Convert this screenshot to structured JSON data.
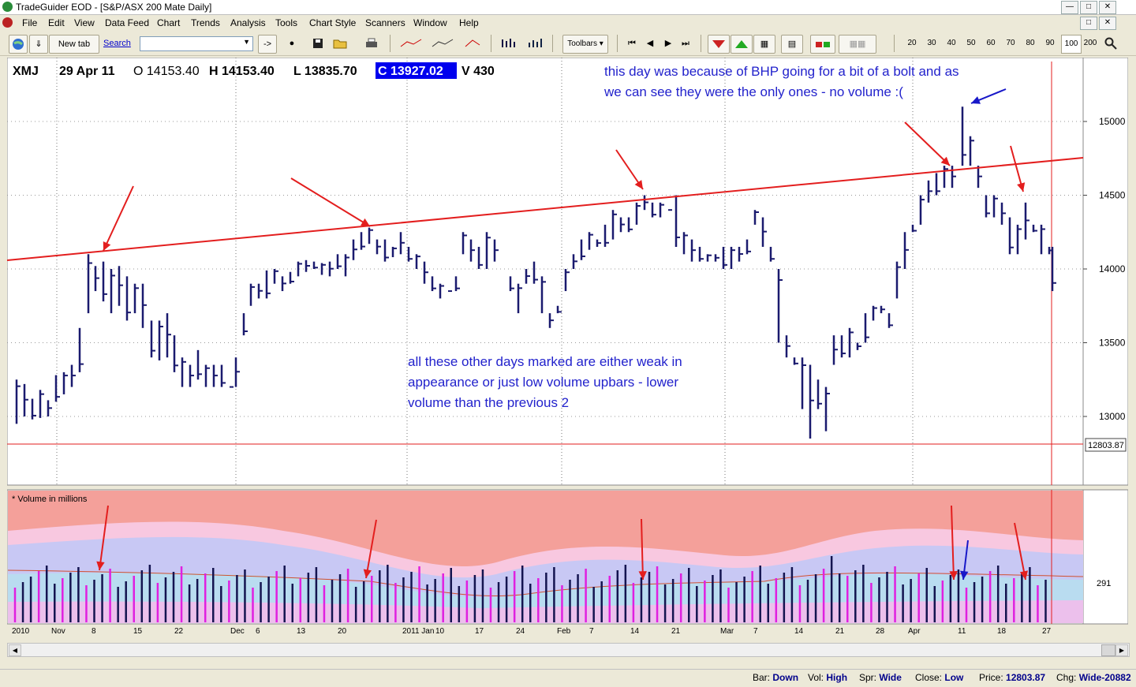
{
  "window": {
    "title": "TradeGuider EOD - [S&P/ASX 200 Mate Daily]"
  },
  "menu": [
    "File",
    "Edit",
    "View",
    "Data Feed",
    "Chart",
    "Trends",
    "Analysis",
    "Tools",
    "Chart Style",
    "Scanners",
    "Window",
    "Help"
  ],
  "toolbar": {
    "new_tab_label": "New tab",
    "search_label": "Search",
    "go_label": "->",
    "toolbars_label": "Toolbars",
    "zoom_levels": [
      "20",
      "30",
      "40",
      "50",
      "60",
      "70",
      "80",
      "90",
      "100",
      "200"
    ]
  },
  "chart_header": {
    "symbol": "XMJ",
    "date": "29 Apr 11",
    "open": "O 14153.40",
    "high": "H 14153.40",
    "low": "L 13835.70",
    "close": "C 13927.02",
    "volume": "V 430"
  },
  "annotations": {
    "bhp_note_line1": "this day was because of BHP going for a bit of a bolt and as",
    "bhp_note_line2": "we can see they were the only ones - no volume :(",
    "other_days_line1": "all these other days marked are either weak in",
    "other_days_line2": "appearance or just low volume upbars - lower",
    "other_days_line3": "volume than the previous 2"
  },
  "price_axis": {
    "ticks": [
      "15000",
      "14500",
      "14000",
      "13500",
      "13000"
    ],
    "cursor_price": "12803.87"
  },
  "volume_panel": {
    "label": "* Volume in millions",
    "axis_label": "291"
  },
  "date_axis": [
    "2010",
    "Nov",
    "8",
    "15",
    "22",
    "Dec",
    "6",
    "13",
    "20",
    "2011 Jan",
    "10",
    "17",
    "24",
    "Feb",
    "7",
    "14",
    "21",
    "Mar",
    "7",
    "14",
    "21",
    "28",
    "Apr",
    "11",
    "18",
    "27"
  ],
  "status": {
    "bar_label": "Bar:",
    "bar_value": "Down",
    "vol_label": "Vol:",
    "vol_value": "High",
    "spr_label": "Spr:",
    "spr_value": "Wide",
    "close_label": "Close:",
    "close_value": "Low",
    "price_label": "Price:",
    "price_value": "12803.87",
    "chg_label": "Chg:",
    "chg_value": "Wide-20882"
  },
  "colors": {
    "bar": "#1a1a6e",
    "trend": "#e31e1e",
    "note": "#2222cc",
    "vol_up": "#e020e0",
    "vol_down": "#141450"
  }
}
